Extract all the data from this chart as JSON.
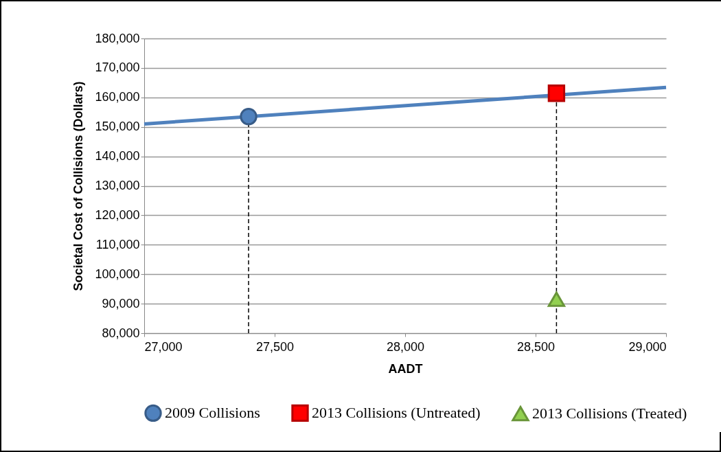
{
  "chart_data": {
    "type": "scatter",
    "xlabel": "AADT",
    "ylabel": "Societal Cost of Collisions (Dollars)",
    "xlim": [
      27000,
      29000
    ],
    "xticks": [
      {
        "value": 27000,
        "label": "27,000"
      },
      {
        "value": 27500,
        "label": "27,500"
      },
      {
        "value": 28000,
        "label": "28,000"
      },
      {
        "value": 28500,
        "label": "28,500"
      },
      {
        "value": 29000,
        "label": "29,000"
      }
    ],
    "ylim": [
      80000,
      180000
    ],
    "yticks": [
      {
        "value": 80000,
        "label": "80,000"
      },
      {
        "value": 90000,
        "label": "90,000"
      },
      {
        "value": 100000,
        "label": "100,000"
      },
      {
        "value": 110000,
        "label": "110,000"
      },
      {
        "value": 120000,
        "label": "120,000"
      },
      {
        "value": 130000,
        "label": "130,000"
      },
      {
        "value": 140000,
        "label": "140,000"
      },
      {
        "value": 150000,
        "label": "150,000"
      },
      {
        "value": 160000,
        "label": "160,000"
      },
      {
        "value": 170000,
        "label": "170,000"
      },
      {
        "value": 180000,
        "label": "180,000"
      }
    ],
    "grid": "y",
    "legend": "bottom",
    "series": [
      {
        "type": "line",
        "color": "#4f81bd",
        "x": [
          27000,
          29000
        ],
        "values": [
          151000,
          163400
        ]
      },
      {
        "name": "2009 Collisions",
        "marker": "circle",
        "color": "#4f81bd",
        "x": [
          27400
        ],
        "values": [
          153500
        ]
      },
      {
        "name": "2013 Collisions (Untreated)",
        "marker": "square",
        "color": "#ff0000",
        "x": [
          28580
        ],
        "values": [
          161400
        ]
      },
      {
        "name": "2013 Collisions (Treated)",
        "marker": "triangle",
        "color": "#92d050",
        "x": [
          28580
        ],
        "values": [
          91500
        ]
      }
    ],
    "ref_lines": [
      {
        "axis": "x",
        "value": 27400,
        "line_style": "dashed",
        "color": "#000000"
      },
      {
        "axis": "x",
        "value": 28580,
        "line_style": "dashed",
        "color": "#000000"
      }
    ]
  }
}
